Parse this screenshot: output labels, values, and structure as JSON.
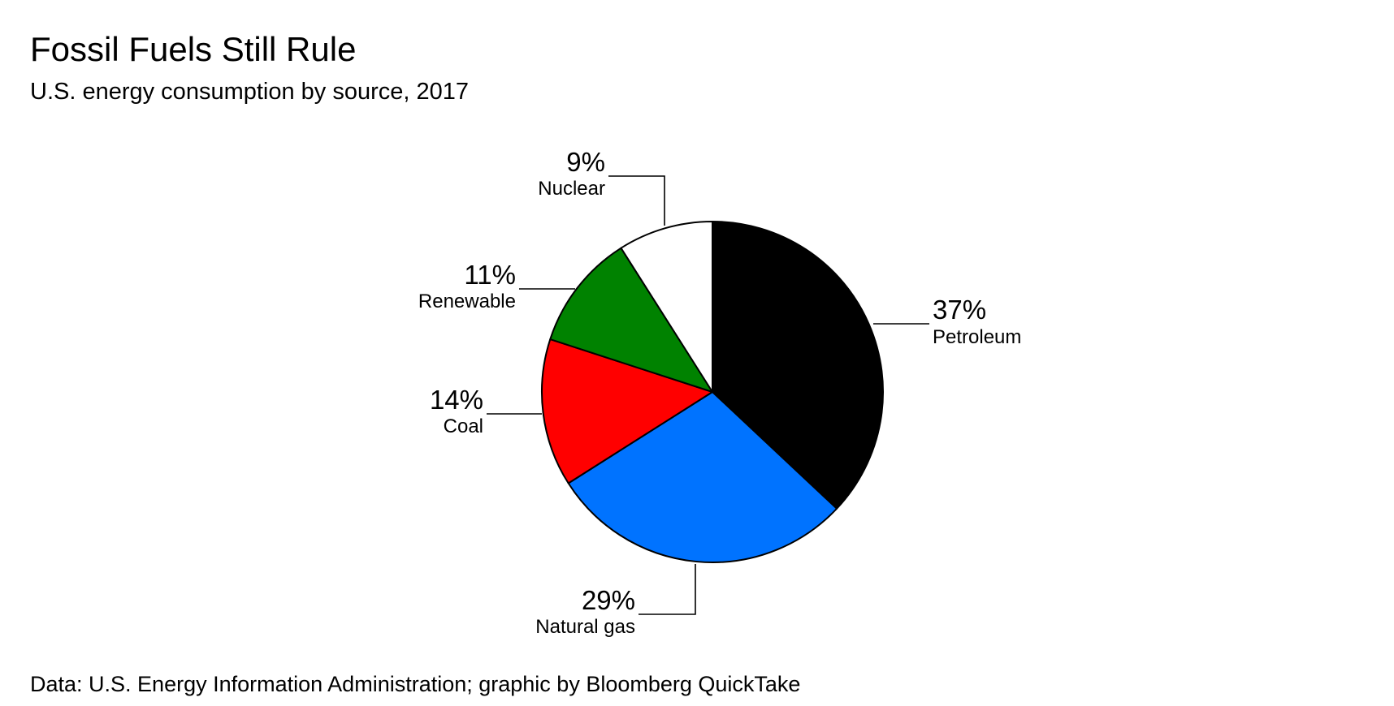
{
  "chart_data": {
    "type": "pie",
    "title": "Fossil Fuels Still Rule",
    "subtitle": "U.S. energy consumption by source, 2017",
    "source": "Data: U.S. Energy Information Administration; graphic by Bloomberg QuickTake",
    "start_at": "12 o'clock, clockwise",
    "slices": [
      {
        "key": "petroleum",
        "label": "Petroleum",
        "value": 37,
        "value_label": "37%",
        "color": "#000000"
      },
      {
        "key": "natural-gas",
        "label": "Natural gas",
        "value": 29,
        "value_label": "29%",
        "color": "#0073ff"
      },
      {
        "key": "coal",
        "label": "Coal",
        "value": 14,
        "value_label": "14%",
        "color": "#ff0000"
      },
      {
        "key": "renewable",
        "label": "Renewable",
        "value": 11,
        "value_label": "11%",
        "color": "#008200"
      },
      {
        "key": "nuclear",
        "label": "Nuclear",
        "value": 9,
        "value_label": "9%",
        "color": "#ffffff"
      }
    ]
  }
}
